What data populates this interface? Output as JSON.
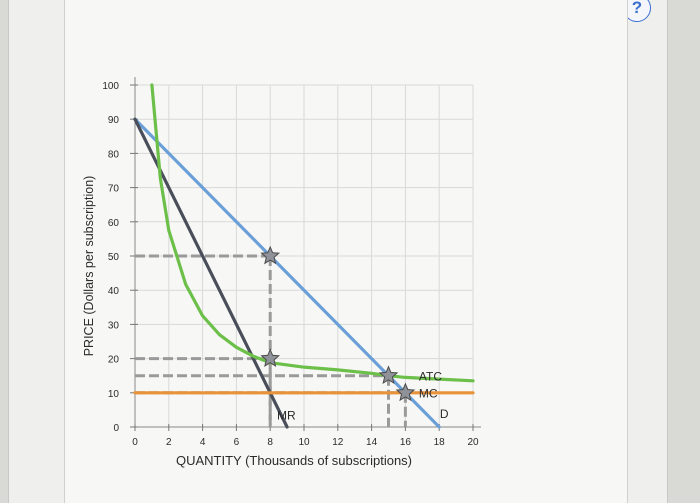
{
  "chart_data": {
    "type": "line",
    "xlabel": "QUANTITY (Thousands of subscriptions)",
    "ylabel": "PRICE (Dollars per subscription)",
    "xlim": [
      0,
      20
    ],
    "ylim": [
      0,
      100
    ],
    "x_ticks": [
      "0",
      "2",
      "4",
      "6",
      "8",
      "10",
      "12",
      "14",
      "16",
      "18",
      "20"
    ],
    "y_ticks": [
      "0",
      "10",
      "20",
      "30",
      "40",
      "50",
      "60",
      "70",
      "80",
      "90",
      "100"
    ],
    "grid": true,
    "series": [
      {
        "name": "D",
        "color": "#6a9fd8",
        "x": [
          0,
          18
        ],
        "y": [
          90,
          0
        ]
      },
      {
        "name": "MR",
        "color": "#4a4e5a",
        "x": [
          0,
          9
        ],
        "y": [
          90,
          0
        ]
      },
      {
        "name": "ATC",
        "color": "#6cc04a",
        "x": [
          1,
          1.5,
          2,
          3,
          4,
          5,
          6,
          7,
          8,
          10,
          12,
          14,
          15,
          16,
          18,
          20
        ],
        "y": [
          100,
          72.7,
          57.5,
          41.7,
          32.5,
          27,
          23.3,
          20.7,
          18.8,
          17.5,
          16.7,
          15.7,
          15,
          14.5,
          14,
          13.5
        ]
      },
      {
        "name": "MC",
        "color": "#e8923a",
        "x": [
          0,
          20
        ],
        "y": [
          10,
          10
        ]
      }
    ],
    "points": [
      {
        "x": 8,
        "y": 50
      },
      {
        "x": 8,
        "y": 20
      },
      {
        "x": 15,
        "y": 15
      },
      {
        "x": 16,
        "y": 10
      }
    ],
    "guides": [
      {
        "x": 8,
        "y": 50
      },
      {
        "x": 8,
        "y": 20
      },
      {
        "x": 15,
        "y": 15
      },
      {
        "x": 16,
        "y": 10
      }
    ],
    "labels": {
      "mr": "MR",
      "d": "D",
      "atc": "ATC",
      "mc": "MC"
    }
  },
  "help": {
    "icon": "help-icon",
    "glyph": "?"
  }
}
